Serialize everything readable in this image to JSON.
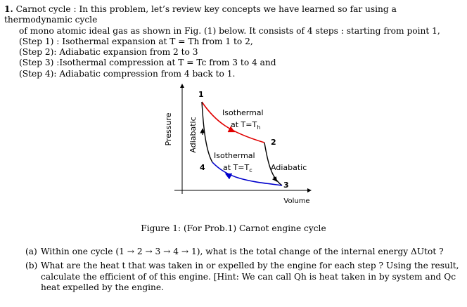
{
  "problem": {
    "number": "1.",
    "intro_line1": "Carnot cycle : In this problem, let’s review key concepts we have learned so far using a thermodynamic cycle",
    "intro_line2": "of mono atomic ideal gas as shown in Fig. (1) below. It consists of 4 steps : starting from point 1,",
    "steps": [
      "(Step 1) : Isothermal expansion at T = Th from 1 to 2,",
      "(Step 2): Adiabatic expansion from 2 to 3",
      "(Step 3) :Isothermal compression at T = Tc from 3 to 4 and",
      "(Step 4): Adiabatic compression from 4 back to 1."
    ]
  },
  "figure": {
    "y_axis_label": "Pressure",
    "x_axis_label": "Volume",
    "point_labels": [
      "1",
      "2",
      "3",
      "4"
    ],
    "curve_labels": {
      "hot_isotherm_line1": "Isothermal",
      "hot_isotherm_line2": "at T=T",
      "hot_sub": "h",
      "cold_isotherm_line1": "Isothermal",
      "cold_isotherm_line2": "at T=T",
      "cold_sub": "c",
      "left_adiabat": "Adiabatic",
      "right_adiabat": "Adiabatic"
    },
    "colors": {
      "hot": "#e00000",
      "cold": "#0000cc",
      "adiabat": "#000000"
    },
    "caption": "Figure 1: (For Prob.1) Carnot engine cycle"
  },
  "questions": [
    {
      "label": "(a)",
      "text": "Within one cycle (1 → 2 → 3 → 4 → 1), what is the total change of the internal energy ΔUtot ?"
    },
    {
      "label": "(b)",
      "text": "What are the heat t that was taken in or expelled by the engine for each step ? Using the result, calculate the efficient of of this engine. [Hint: We can call Qh is heat taken in by system and Qc heat expelled by the engine."
    }
  ]
}
